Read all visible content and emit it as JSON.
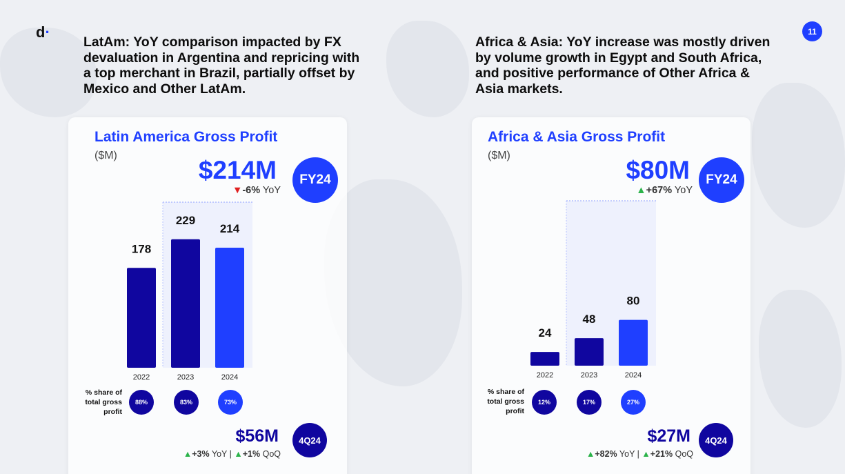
{
  "logo": {
    "letter": "d",
    "dot": "·"
  },
  "page_number": "11",
  "colors": {
    "accent": "#1f3fff",
    "navy": "#10069f",
    "up": "#2bb34a",
    "down": "#e02020"
  },
  "left": {
    "headline": [
      "LatAm: YoY comparison impacted by FX",
      "devaluation in Argentina and repricing with",
      "a top merchant in Brazil, partially offset by",
      "Mexico and Other LatAm."
    ],
    "card_title": "Latin America Gross Profit",
    "unit": "($M)",
    "fy_value": "$214M",
    "fy_yoy_pct": "-6%",
    "fy_yoy_word": "YoY",
    "fy_badge": "FY24",
    "share_label": [
      "% share of",
      "total gross",
      "profit"
    ],
    "shares": [
      "88%",
      "83%",
      "73%"
    ],
    "q_value": "$56M",
    "q_yoy": "+3%",
    "q_yoy_word": "YoY",
    "q_sep": "|",
    "q_qoq": "+1%",
    "q_qoq_word": "QoQ",
    "q_badge": "4Q24"
  },
  "right": {
    "headline": [
      "Africa & Asia: YoY increase was mostly driven",
      "by volume growth in Egypt and South Africa,",
      "and positive performance of Other Africa &",
      "Asia markets."
    ],
    "card_title": "Africa & Asia Gross Profit",
    "unit": "($M)",
    "fy_value": "$80M",
    "fy_yoy_pct": "+67%",
    "fy_yoy_word": "YoY",
    "fy_badge": "FY24",
    "share_label": [
      "% share of",
      "total gross",
      "profit"
    ],
    "shares": [
      "12%",
      "17%",
      "27%"
    ],
    "q_value": "$27M",
    "q_yoy": "+82%",
    "q_yoy_word": "YoY",
    "q_sep": "|",
    "q_qoq": "+21%",
    "q_qoq_word": "QoQ",
    "q_badge": "4Q24"
  },
  "chart_data": [
    {
      "type": "bar",
      "title": "Latin America Gross Profit",
      "ylabel": "($M)",
      "categories": [
        "2022",
        "2023",
        "2024"
      ],
      "values": [
        178,
        229,
        214
      ],
      "bar_colors": [
        "#10069f",
        "#10069f",
        "#1f3fff"
      ],
      "ylim": [
        0,
        229
      ],
      "grid": false
    },
    {
      "type": "bar",
      "title": "Africa & Asia Gross Profit",
      "ylabel": "($M)",
      "categories": [
        "2022",
        "2023",
        "2024"
      ],
      "values": [
        24,
        48,
        80
      ],
      "bar_colors": [
        "#10069f",
        "#10069f",
        "#1f3fff"
      ],
      "ylim": [
        0,
        229
      ],
      "grid": false
    }
  ]
}
